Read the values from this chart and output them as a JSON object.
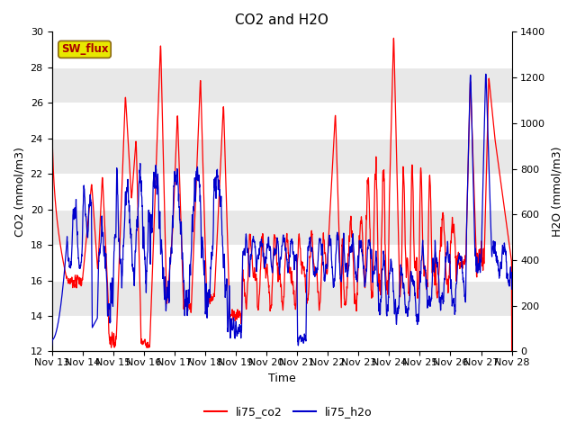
{
  "title": "CO2 and H2O",
  "xlabel": "Time",
  "ylabel_left": "CO2 (mmol/m3)",
  "ylabel_right": "H2O (mmol/m3)",
  "ylim_left": [
    12,
    30
  ],
  "ylim_right": [
    0,
    1400
  ],
  "xtick_labels": [
    "Nov 13",
    "Nov 14",
    "Nov 15",
    "Nov 16",
    "Nov 17",
    "Nov 18",
    "Nov 19",
    "Nov 20",
    "Nov 21",
    "Nov 22",
    "Nov 23",
    "Nov 24",
    "Nov 25",
    "Nov 26",
    "Nov 27",
    "Nov 28"
  ],
  "legend_labels": [
    "li75_co2",
    "li75_h2o"
  ],
  "co2_color": "#ff0000",
  "h2o_color": "#0000cc",
  "annotation_text": "SW_flux",
  "annotation_bg": "#e8e800",
  "annotation_border": "#b8860b",
  "background_color": "#ffffff",
  "plot_bg_color": "#e8e8e8",
  "stripe_color": "#d0d0d0",
  "grid_color": "#ffffff",
  "title_fontsize": 11,
  "axis_fontsize": 9,
  "tick_fontsize": 8,
  "legend_fontsize": 9
}
